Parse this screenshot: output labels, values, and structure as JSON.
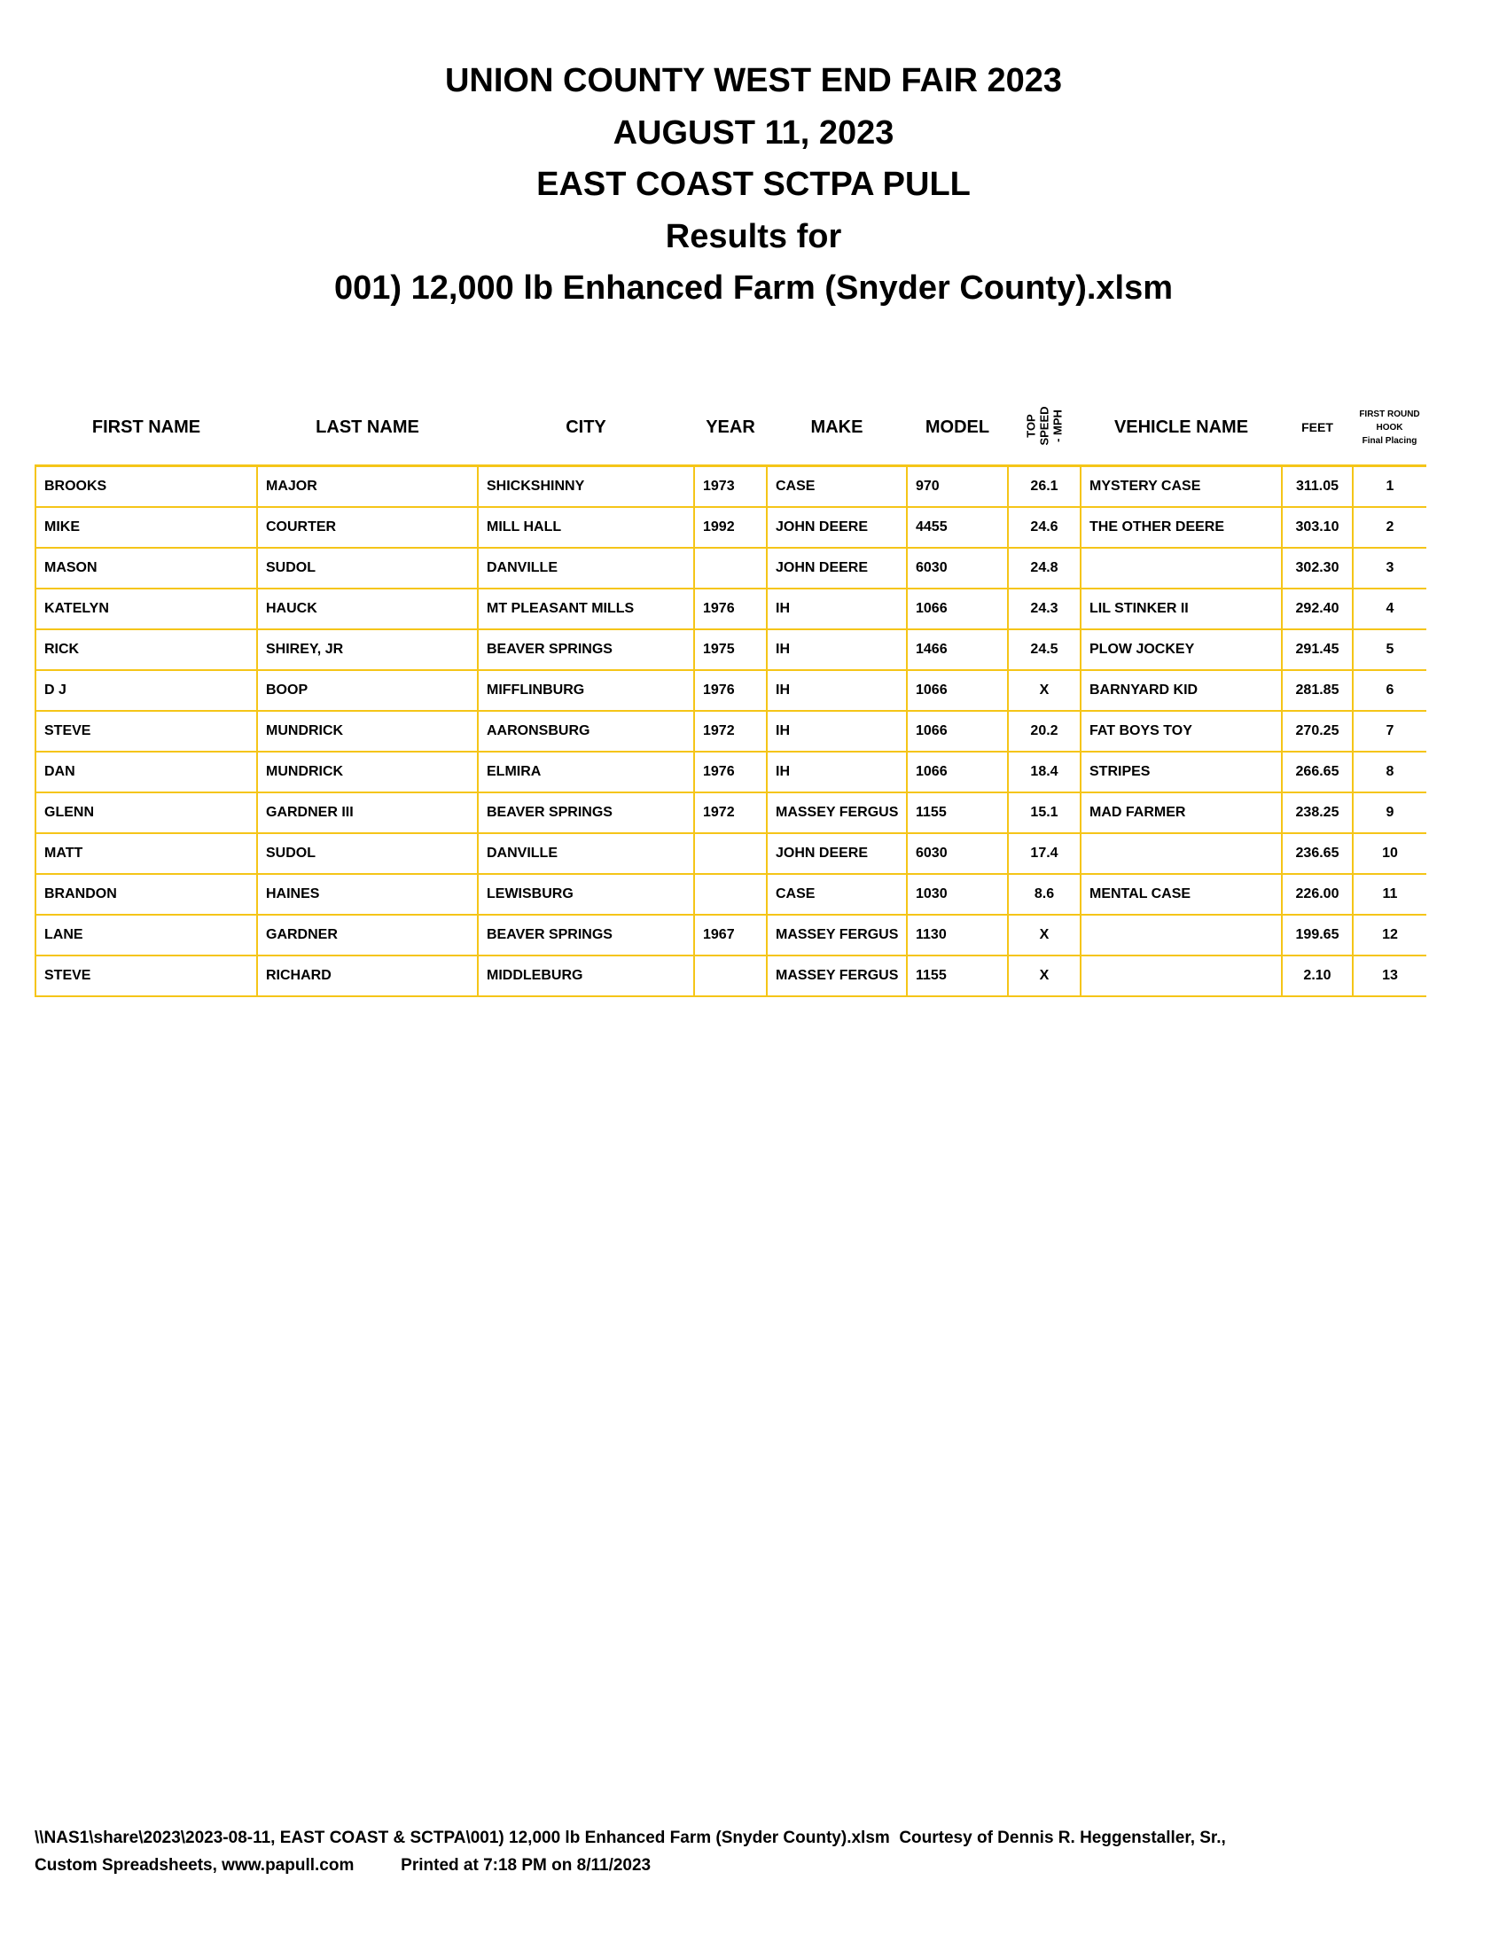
{
  "header": {
    "line1": "UNION COUNTY WEST END FAIR 2023",
    "line2": "AUGUST 11, 2023",
    "line3": "EAST COAST SCTPA PULL",
    "line4": "Results for",
    "line5": "001) 12,000 lb Enhanced Farm (Snyder County).xlsm"
  },
  "table": {
    "columns": [
      "FIRST NAME",
      "LAST NAME",
      "CITY",
      "YEAR",
      "MAKE",
      "MODEL",
      "TOP SPEED - MPH",
      "VEHICLE NAME",
      "FEET",
      "FIRST ROUND HOOK Final Placing"
    ],
    "speed_header": [
      "TOP",
      "SPEED",
      "- MPH"
    ],
    "placing_header": [
      "FIRST ROUND",
      "HOOK",
      "Final Placing"
    ],
    "rows": [
      [
        "BROOKS",
        "MAJOR",
        "SHICKSHINNY",
        "1973",
        "CASE",
        "970",
        "26.1",
        "MYSTERY CASE",
        "311.05",
        "1"
      ],
      [
        "MIKE",
        "COURTER",
        "MILL HALL",
        "1992",
        "JOHN DEERE",
        "4455",
        "24.6",
        "THE OTHER DEERE",
        "303.10",
        "2"
      ],
      [
        "MASON",
        "SUDOL",
        "DANVILLE",
        "",
        "JOHN DEERE",
        "6030",
        "24.8",
        "",
        "302.30",
        "3"
      ],
      [
        "KATELYN",
        "HAUCK",
        "MT PLEASANT MILLS",
        "1976",
        "IH",
        "1066",
        "24.3",
        "LIL STINKER II",
        "292.40",
        "4"
      ],
      [
        "RICK",
        "SHIREY, JR",
        "BEAVER SPRINGS",
        "1975",
        "IH",
        "1466",
        "24.5",
        "PLOW JOCKEY",
        "291.45",
        "5"
      ],
      [
        "D J",
        "BOOP",
        "MIFFLINBURG",
        "1976",
        "IH",
        "1066",
        "X",
        "BARNYARD KID",
        "281.85",
        "6"
      ],
      [
        "STEVE",
        "MUNDRICK",
        "AARONSBURG",
        "1972",
        "IH",
        "1066",
        "20.2",
        "FAT BOYS TOY",
        "270.25",
        "7"
      ],
      [
        "DAN",
        "MUNDRICK",
        "ELMIRA",
        "1976",
        "IH",
        "1066",
        "18.4",
        "STRIPES",
        "266.65",
        "8"
      ],
      [
        "GLENN",
        "GARDNER III",
        "BEAVER SPRINGS",
        "1972",
        "MASSEY FERGUS",
        "1155",
        "15.1",
        "MAD FARMER",
        "238.25",
        "9"
      ],
      [
        "MATT",
        "SUDOL",
        "DANVILLE",
        "",
        "JOHN DEERE",
        "6030",
        "17.4",
        "",
        "236.65",
        "10"
      ],
      [
        "BRANDON",
        "HAINES",
        "LEWISBURG",
        "",
        "CASE",
        "1030",
        "8.6",
        "MENTAL CASE",
        "226.00",
        "11"
      ],
      [
        "LANE",
        "GARDNER",
        "BEAVER SPRINGS",
        "1967",
        "MASSEY FERGUS",
        "1130",
        "X",
        "",
        "199.65",
        "12"
      ],
      [
        "STEVE",
        "RICHARD",
        "MIDDLEBURG",
        "",
        "MASSEY FERGUS",
        "1155",
        "X",
        "",
        "2.10",
        "13"
      ]
    ]
  },
  "footer": {
    "line1": "\\\\NAS1\\share\\2023\\2023-08-11, EAST COAST & SCTPA\\001) 12,000 lb Enhanced Farm (Snyder County).xlsm  Courtesy of Dennis R. Heggenstaller, Sr.,",
    "line2a": "Custom Spreadsheets, www.papull.com",
    "line2b": "Printed at 7:18 PM on 8/11/2023"
  },
  "colors": {
    "grid": "#f5c518"
  }
}
